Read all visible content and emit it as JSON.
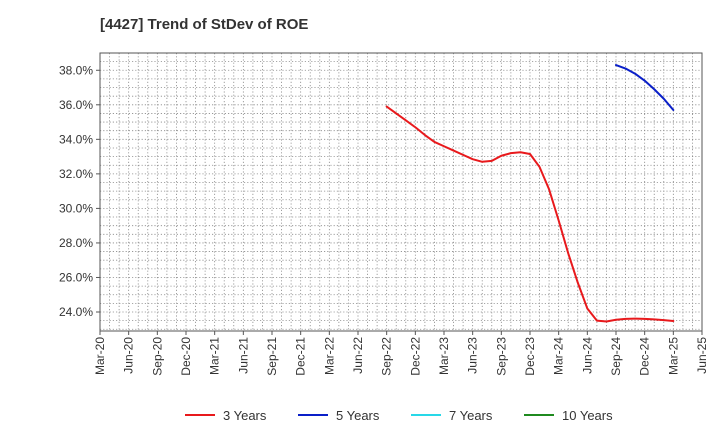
{
  "title": "[4427]  Trend of StDev of ROE",
  "chart_data": {
    "type": "line",
    "title": "[4427]  Trend of StDev of ROE",
    "xlabel": "",
    "ylabel": "",
    "x_ticks": [
      "Mar-20",
      "Jun-20",
      "Sep-20",
      "Dec-20",
      "Mar-21",
      "Jun-21",
      "Sep-21",
      "Dec-21",
      "Mar-22",
      "Jun-22",
      "Sep-22",
      "Dec-22",
      "Mar-23",
      "Jun-23",
      "Sep-23",
      "Dec-23",
      "Mar-24",
      "Jun-24",
      "Sep-24",
      "Dec-24",
      "Mar-25",
      "Jun-25"
    ],
    "y_ticks": [
      "24.0%",
      "26.0%",
      "28.0%",
      "30.0%",
      "32.0%",
      "34.0%",
      "36.0%",
      "38.0%"
    ],
    "ylim": [
      22.9,
      39.0
    ],
    "y_unit": "%",
    "grid": true,
    "legend_position": "bottom",
    "series": [
      {
        "name": "3 Years",
        "color": "#e8191c",
        "x": [
          "Sep-22",
          "Oct-22",
          "Nov-22",
          "Dec-22",
          "Jan-23",
          "Feb-23",
          "Mar-23",
          "Apr-23",
          "May-23",
          "Jun-23",
          "Jul-23",
          "Aug-23",
          "Sep-23",
          "Oct-23",
          "Nov-23",
          "Dec-23",
          "Jan-24",
          "Feb-24",
          "Mar-24",
          "Apr-24",
          "May-24",
          "Jun-24",
          "Jul-24",
          "Aug-24",
          "Sep-24",
          "Oct-24",
          "Nov-24",
          "Dec-24",
          "Jan-25",
          "Feb-25",
          "Mar-25"
        ],
        "y": [
          35.9,
          35.5,
          35.1,
          34.7,
          34.25,
          33.85,
          33.6,
          33.35,
          33.1,
          32.85,
          32.7,
          32.75,
          33.05,
          33.2,
          33.25,
          33.15,
          32.4,
          31.1,
          29.3,
          27.4,
          25.7,
          24.2,
          23.5,
          23.45,
          23.55,
          23.6,
          23.62,
          23.6,
          23.57,
          23.53,
          23.48
        ]
      },
      {
        "name": "5 Years",
        "color": "#0a1fc8",
        "x": [
          "Sep-24",
          "Oct-24",
          "Nov-24",
          "Dec-24",
          "Jan-25",
          "Feb-25",
          "Mar-25"
        ],
        "y": [
          38.3,
          38.1,
          37.8,
          37.4,
          36.9,
          36.35,
          35.7
        ]
      },
      {
        "name": "7 Years",
        "color": "#28d8e8",
        "x": [],
        "y": []
      },
      {
        "name": "10 Years",
        "color": "#1f8a1f",
        "x": [],
        "y": []
      }
    ]
  }
}
